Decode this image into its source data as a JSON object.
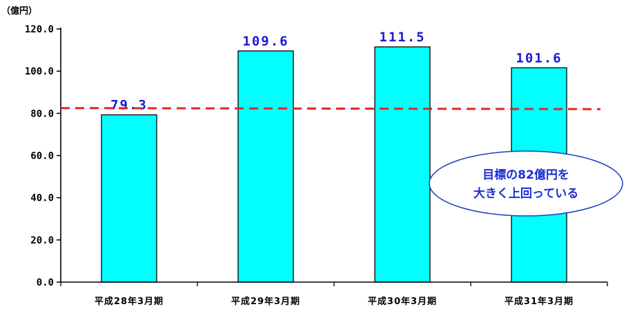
{
  "chart_data": {
    "type": "bar",
    "unit_label": "（億円）",
    "categories": [
      "平成28年3月期",
      "平成29年3月期",
      "平成30年3月期",
      "平成31年3月期"
    ],
    "values": [
      79.3,
      109.6,
      111.5,
      101.6
    ],
    "value_labels": [
      "79.3",
      "109.6",
      "111.5",
      "101.6"
    ],
    "ylim": [
      0,
      120
    ],
    "yticks": [
      0,
      20,
      40,
      60,
      80,
      100,
      120
    ],
    "ytick_labels": [
      "0.0",
      "20.0",
      "40.0",
      "60.0",
      "80.0",
      "100.0",
      "120.0"
    ],
    "target_line": {
      "start_value": 82.5,
      "end_value": 82
    },
    "callout": {
      "lines": [
        "目標の82億円を",
        "大きく上回っている"
      ]
    },
    "colors": {
      "bar": "#00ffff",
      "bar_border": "#000000",
      "target_line": "#e8231f",
      "value_label": "#1a1ad6",
      "callout_text": "#1a2fd0",
      "callout_border": "#1a3cc8"
    }
  }
}
